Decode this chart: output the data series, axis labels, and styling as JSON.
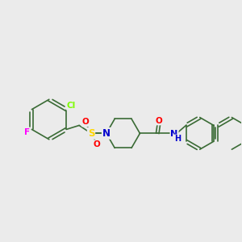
{
  "background_color": "#ebebeb",
  "bond_color": "#3a6b35",
  "atom_colors": {
    "Cl": "#7cfc00",
    "F": "#ff00ff",
    "O": "#ff0000",
    "N": "#0000cd",
    "S": "#ffd700",
    "H": "#0000cd",
    "C": "#3a6b35"
  },
  "figsize": [
    3.0,
    3.0
  ],
  "dpi": 100
}
